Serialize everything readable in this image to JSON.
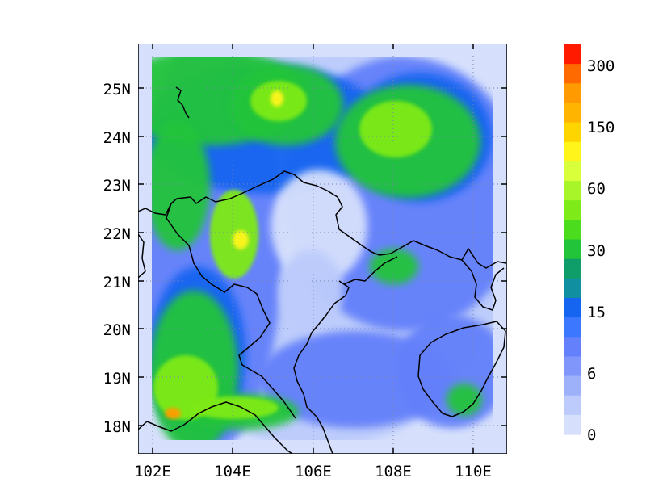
{
  "map": {
    "lat_labels": [
      "25N",
      "24N",
      "23N",
      "22N",
      "21N",
      "20N",
      "19N",
      "18N"
    ],
    "lon_labels": [
      "102E",
      "104E",
      "106E",
      "108E",
      "110E"
    ],
    "colorbar": {
      "labels": [
        "300",
        "150",
        "60",
        "30",
        "15",
        "6",
        "0"
      ],
      "colors": [
        "#FF1A00",
        "#FF6A00",
        "#FF9B00",
        "#FFB400",
        "#FFD500",
        "#FFF51A",
        "#D9FF3A",
        "#A8F52A",
        "#7EEA17",
        "#4BDC1E",
        "#22C43A",
        "#0F9E6A",
        "#0F8FA0",
        "#1565F0",
        "#3C78FF",
        "#6480FA",
        "#8096FA",
        "#9DB0FA",
        "#BCCBFB",
        "#D6E0FC"
      ]
    },
    "palette": {
      "background": "#D6E0FC",
      "light_blue": "#BCCBFB",
      "blue": "#6480FA",
      "deep_blue": "#1565F0",
      "green": "#22C43A",
      "light_green": "#7EEA17",
      "yellow": "#FFF51A",
      "orange": "#FF9B00"
    }
  }
}
